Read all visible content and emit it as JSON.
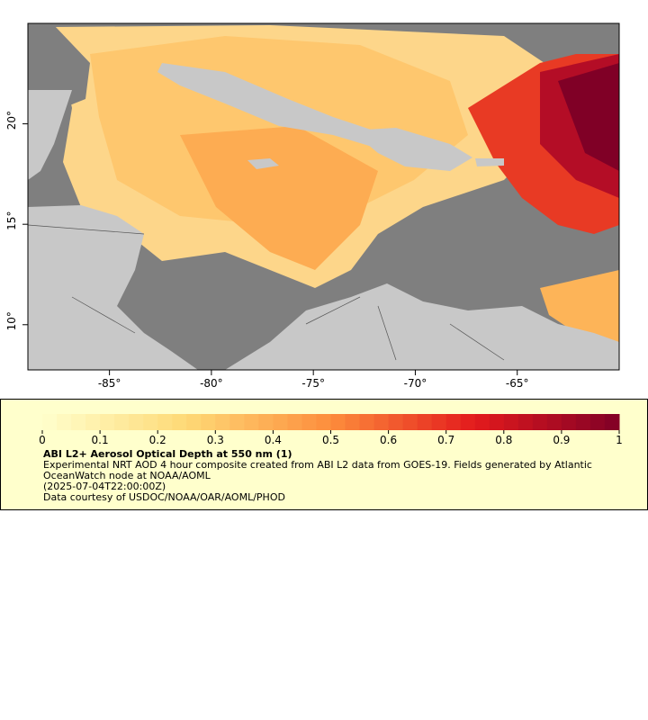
{
  "map": {
    "xlim": [
      -89,
      -60
    ],
    "ylim": [
      7.75,
      25
    ],
    "xticks": [
      {
        "value": -85,
        "label": "-85°"
      },
      {
        "value": -80,
        "label": "-80°"
      },
      {
        "value": -75,
        "label": "-75°"
      },
      {
        "value": -70,
        "label": "-70°"
      },
      {
        "value": -65,
        "label": "-65°"
      }
    ],
    "yticks": [
      {
        "value": 10,
        "label": "10°"
      },
      {
        "value": 15,
        "label": "15°"
      },
      {
        "value": 20,
        "label": "20°"
      }
    ]
  },
  "colorbar": {
    "range": [
      0,
      1
    ],
    "ticks": [
      0,
      0.1,
      0.2,
      0.3,
      0.4,
      0.5,
      0.6,
      0.7,
      0.8,
      0.9,
      1
    ]
  },
  "legend": {
    "title": "ABI L2+ Aerosol Optical Depth at 550 nm (1)",
    "description": "Experimental NRT AOD 4 hour composite created from ABI L2 data from GOES-19. Fields generated by Atlantic OceanWatch node at NOAA/AOML",
    "time": "(2025-07-04T22:00:00Z)",
    "credit": "Data courtesy of USDOC/NOAA/OAR/AOML/PHOD"
  }
}
